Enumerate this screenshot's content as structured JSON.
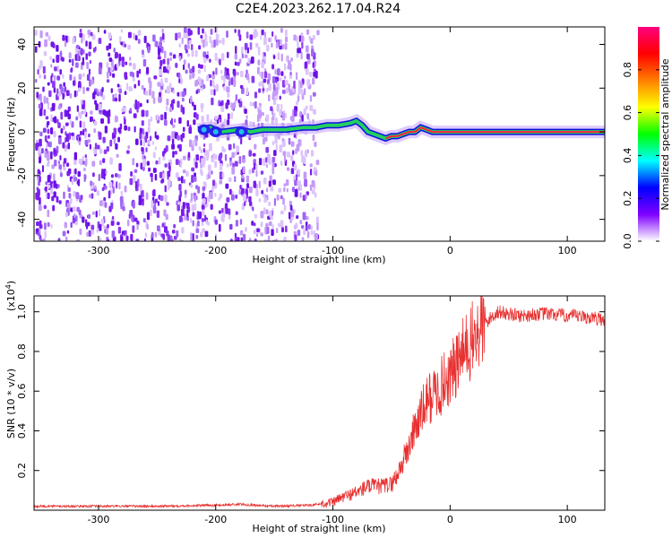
{
  "title": "C2E4.2023.262.17.04.R24",
  "chart_data": [
    {
      "type": "heatmap",
      "xlabel": "Height of straight line (km)",
      "ylabel": "Frequency (Hz)",
      "xlim": [
        -355,
        132
      ],
      "ylim": [
        -50,
        48
      ],
      "x_ticks": [
        -300,
        -200,
        -100,
        0,
        100
      ],
      "x_tick_labels": [
        "-300",
        "-200",
        "-100",
        "0",
        "100"
      ],
      "y_ticks": [
        -40,
        -20,
        0,
        20,
        40
      ],
      "y_tick_labels": [
        "-40",
        "-20",
        "0",
        "20",
        "40"
      ],
      "grid": false,
      "noise_region_x": [
        -355,
        -120
      ],
      "ridge": {
        "x": [
          -215,
          -205,
          -195,
          -180,
          -170,
          -160,
          -140,
          -125,
          -115,
          -105,
          -95,
          -85,
          -80,
          -75,
          -70,
          -65,
          -60,
          -55,
          -50,
          -45,
          -40,
          -35,
          -30,
          -25,
          -20,
          -15,
          -10,
          0,
          50,
          132
        ],
        "y": [
          1,
          2,
          0,
          1,
          0,
          1,
          1,
          2,
          2,
          3,
          3,
          4,
          5,
          3,
          0,
          -1,
          -2,
          -3,
          -2,
          -2,
          -1,
          0,
          0,
          2,
          1,
          0,
          0,
          0,
          0,
          0
        ]
      },
      "colorbar": {
        "label": "Normalized spectral amplitude",
        "range": [
          0,
          1
        ],
        "ticks": [
          0.0,
          0.2,
          0.4,
          0.6,
          0.8
        ],
        "tick_labels": [
          "0.0",
          "0.2",
          "0.4",
          "0.6",
          "0.8"
        ],
        "colors": [
          "#ffffff",
          "#7f00ff",
          "#0000ff",
          "#00ffff",
          "#00ff00",
          "#ffff00",
          "#ff7f00",
          "#ff0000",
          "#ff0080"
        ]
      }
    },
    {
      "type": "line",
      "xlabel": "Height of straight line (km)",
      "ylabel": "SNR (10 * v/v)",
      "y_multiplier_label": "(x10",
      "y_multiplier_exp": "4",
      "y_multiplier_close": ")",
      "xlim": [
        -355,
        132
      ],
      "ylim": [
        0,
        1.08
      ],
      "x_ticks": [
        -300,
        -200,
        -100,
        0,
        100
      ],
      "x_tick_labels": [
        "-300",
        "-200",
        "-100",
        "0",
        "100"
      ],
      "y_ticks": [
        0.2,
        0.4,
        0.6,
        0.8,
        1.0
      ],
      "y_tick_labels": [
        "0.2",
        "0.4",
        "0.6",
        "0.8",
        "1.0"
      ],
      "grid": false,
      "color": "#e83030",
      "series": [
        {
          "x": [
            -355,
            -300,
            -250,
            -200,
            -180,
            -150,
            -120,
            -100,
            -90,
            -80,
            -70,
            -60,
            -50,
            -45,
            -40,
            -35,
            -30,
            -25,
            -20,
            -15,
            -10,
            -5,
            0,
            5,
            10,
            15,
            20,
            25,
            30,
            35,
            40,
            50,
            60,
            80,
            100,
            120,
            132
          ],
          "values": [
            0.02,
            0.02,
            0.02,
            0.025,
            0.03,
            0.02,
            0.025,
            0.04,
            0.07,
            0.09,
            0.12,
            0.12,
            0.13,
            0.18,
            0.25,
            0.32,
            0.42,
            0.48,
            0.55,
            0.58,
            0.6,
            0.65,
            0.68,
            0.72,
            0.78,
            0.82,
            0.86,
            0.9,
            0.94,
            0.97,
            1.0,
            0.99,
            0.98,
            0.99,
            0.98,
            0.97,
            0.96
          ]
        }
      ]
    }
  ]
}
